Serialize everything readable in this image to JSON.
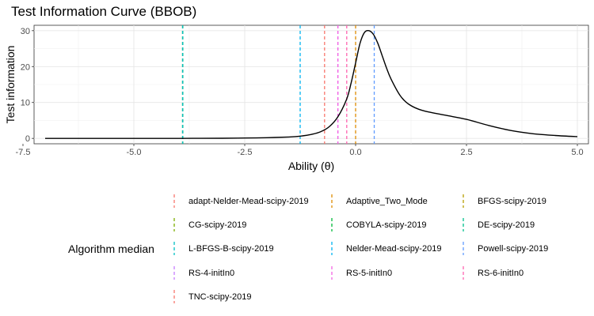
{
  "chart_data": {
    "type": "line",
    "title": "Test Information Curve (BBOB)",
    "xlabel": "Ability (θ)",
    "ylabel": "Test information",
    "xlim": [
      -7.25,
      5.25
    ],
    "ylim": [
      -1.5,
      31.5
    ],
    "x_ticks": [
      -7.5,
      -5.0,
      -2.5,
      0.0,
      2.5,
      5.0
    ],
    "x_tick_labels": [
      "-7.5",
      "-5.0",
      "-2.5",
      "0.0",
      "2.5",
      "5.0"
    ],
    "y_ticks": [
      0,
      10,
      20,
      30
    ],
    "y_tick_labels": [
      "0",
      "10",
      "20",
      "30"
    ],
    "grid": true,
    "curve": {
      "x": [
        -7.0,
        -6.0,
        -5.0,
        -4.0,
        -3.0,
        -2.5,
        -2.0,
        -1.5,
        -1.2,
        -1.0,
        -0.8,
        -0.6,
        -0.4,
        -0.2,
        -0.1,
        0.0,
        0.1,
        0.2,
        0.3,
        0.4,
        0.5,
        0.6,
        0.7,
        0.8,
        1.0,
        1.2,
        1.5,
        2.0,
        2.5,
        3.0,
        3.5,
        4.0,
        4.5,
        5.0
      ],
      "y": [
        0.0,
        0.0,
        0.0,
        0.0,
        0.05,
        0.1,
        0.2,
        0.4,
        0.7,
        1.1,
        1.8,
        3.2,
        6.0,
        11.0,
        15.5,
        21.0,
        26.5,
        29.5,
        30.0,
        29.0,
        26.5,
        23.0,
        19.5,
        16.5,
        12.0,
        9.5,
        7.8,
        6.5,
        5.3,
        3.6,
        2.2,
        1.3,
        0.8,
        0.5
      ]
    },
    "legend_title": "Algorithm median",
    "legend_position": "bottom",
    "median_lines": [
      {
        "name": "adapt-Nelder-Mead-scipy-2019",
        "x": -3.9,
        "color": "#F8766D"
      },
      {
        "name": "Adaptive_Two_Mode",
        "x": 0.0,
        "color": "#DE8C00"
      },
      {
        "name": "BFGS-scipy-2019",
        "x": -3.9,
        "color": "#B79F00"
      },
      {
        "name": "CG-scipy-2019",
        "x": -3.9,
        "color": "#7CAE00"
      },
      {
        "name": "COBYLA-scipy-2019",
        "x": -3.9,
        "color": "#00BA38"
      },
      {
        "name": "DE-scipy-2019",
        "x": -3.9,
        "color": "#00C08B"
      },
      {
        "name": "L-BFGS-B-scipy-2019",
        "x": -3.9,
        "color": "#00BFC4"
      },
      {
        "name": "Nelder-Mead-scipy-2019",
        "x": -1.25,
        "color": "#00B4F0"
      },
      {
        "name": "Powell-scipy-2019",
        "x": 0.42,
        "color": "#619CFF"
      },
      {
        "name": "RS-4-initIn0",
        "x": -0.4,
        "color": "#C77CFF"
      },
      {
        "name": "RS-5-initIn0",
        "x": -0.4,
        "color": "#F564E3"
      },
      {
        "name": "RS-6-initIn0",
        "x": -0.2,
        "color": "#FF64B0"
      },
      {
        "name": "TNC-scipy-2019",
        "x": -0.7,
        "color": "#F8766D"
      }
    ]
  }
}
